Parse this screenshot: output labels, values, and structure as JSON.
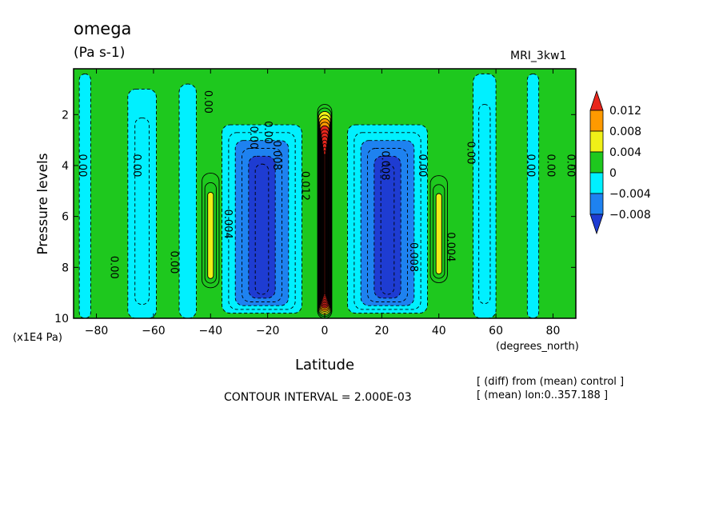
{
  "header": {
    "title": "omega",
    "units": "(Pa s-1)",
    "model": "MRI_3kw1"
  },
  "footer": {
    "contour_interval": "CONTOUR INTERVAL = 2.000E-03",
    "note_diff": "[ (diff) from (mean) control ]",
    "note_mean": "[ (mean) lon:0..357.188 ]"
  },
  "chart_data": {
    "type": "heatmap",
    "title": "omega",
    "subtitle": "(Pa s-1)",
    "xlabel": "Latitude",
    "xunit": "(degrees_north)",
    "ylabel": "Pressure levels",
    "yunit": "(x1E4 Pa)",
    "xlim": [
      -88,
      88
    ],
    "ylim": [
      10,
      0.2
    ],
    "x_ticks": [
      -80,
      -60,
      -40,
      -20,
      0,
      20,
      40,
      60,
      80
    ],
    "x_tick_labels": [
      "−80",
      "−60",
      "−40",
      "−20",
      "0",
      "20",
      "40",
      "60",
      "80"
    ],
    "y_ticks": [
      2,
      4,
      6,
      8,
      10
    ],
    "y_tick_labels": [
      "2",
      "4",
      "6",
      "8",
      "10"
    ],
    "contour_interval": 0.002,
    "colorbar": {
      "labels": [
        "0.012",
        "0.008",
        "0.004",
        "0",
        "−0.004",
        "−0.008"
      ],
      "colors": [
        "#e8261c",
        "#ff9a00",
        "#f0f018",
        "#1ec81e",
        "#00f0ff",
        "#1e82f0",
        "#1e3cd2"
      ]
    },
    "fill_levels": [
      {
        "min": -0.012,
        "max": -0.008,
        "color": "#1e3cd2"
      },
      {
        "min": -0.008,
        "max": -0.004,
        "color": "#1e82f0"
      },
      {
        "min": -0.004,
        "max": 0.0,
        "color": "#00f0ff"
      },
      {
        "min": 0.0,
        "max": 0.004,
        "color": "#1ec81e"
      },
      {
        "min": 0.004,
        "max": 0.008,
        "color": "#f0f018"
      },
      {
        "min": 0.008,
        "max": 0.012,
        "color": "#ff9a00"
      },
      {
        "min": 0.012,
        "max": 0.05,
        "color": "#e8261c"
      }
    ],
    "features": [
      {
        "name": "equatorial-ascent-core",
        "lat_center": 0,
        "lat_halfwidth": 2.5,
        "p_top": 1.6,
        "p_bottom": 10,
        "peak": 0.03
      },
      {
        "name": "subtropical-descent-south",
        "lat_center": -22,
        "lat_halfwidth": 14,
        "p_top": 2.4,
        "p_bottom": 9.8,
        "peak": -0.011
      },
      {
        "name": "subtropical-descent-north",
        "lat_center": 22,
        "lat_halfwidth": 14,
        "p_top": 2.4,
        "p_bottom": 9.8,
        "peak": -0.011
      },
      {
        "name": "midlatitude-ascent-south",
        "lat_center": -40,
        "lat_halfwidth": 3,
        "p_top": 4.3,
        "p_bottom": 8.8,
        "peak": 0.006
      },
      {
        "name": "midlatitude-ascent-north",
        "lat_center": 40,
        "lat_halfwidth": 3,
        "p_top": 4.4,
        "p_bottom": 8.6,
        "peak": 0.006
      },
      {
        "name": "cyan-band-south-70",
        "lat_center": -64,
        "lat_halfwidth": 5,
        "p_top": 1.0,
        "p_bottom": 10,
        "peak": -0.003
      },
      {
        "name": "cyan-band-south-48",
        "lat_center": -48,
        "lat_halfwidth": 3,
        "p_top": 0.8,
        "p_bottom": 10,
        "peak": -0.002
      },
      {
        "name": "cyan-band-north-55",
        "lat_center": 56,
        "lat_halfwidth": 4,
        "p_top": 0.4,
        "p_bottom": 10,
        "peak": -0.003
      },
      {
        "name": "cyan-band-north-73",
        "lat_center": 73,
        "lat_halfwidth": 2,
        "p_top": 0.4,
        "p_bottom": 10,
        "peak": -0.002
      },
      {
        "name": "cyan-band-south-85",
        "lat_center": -84,
        "lat_halfwidth": 2,
        "p_top": 0.4,
        "p_bottom": 10,
        "peak": -0.002
      }
    ],
    "contour_labels": [
      {
        "text": "0.00",
        "lat": -42,
        "p": 1.5
      },
      {
        "text": "0.00",
        "lat": -86,
        "p": 4.0
      },
      {
        "text": "0.00",
        "lat": -67,
        "p": 4.0
      },
      {
        "text": "0.00",
        "lat": -75,
        "p": 8.0
      },
      {
        "text": "0.00",
        "lat": -54,
        "p": 7.8
      },
      {
        "text": "0.004",
        "lat": -35,
        "p": 6.3
      },
      {
        "text": "0.00",
        "lat": -26,
        "p": 2.9
      },
      {
        "text": "0.00",
        "lat": -21,
        "p": 2.7
      },
      {
        "text": "0.008",
        "lat": -18,
        "p": 3.6
      },
      {
        "text": "0.012",
        "lat": -8,
        "p": 4.8
      },
      {
        "text": "0.008",
        "lat": 20,
        "p": 4.0
      },
      {
        "text": "0.00",
        "lat": 33,
        "p": 4.0
      },
      {
        "text": "0.008",
        "lat": 30,
        "p": 7.6
      },
      {
        "text": "0.004",
        "lat": 43,
        "p": 7.2
      },
      {
        "text": "0.00",
        "lat": 50,
        "p": 3.5
      },
      {
        "text": "0.00",
        "lat": 71,
        "p": 4.0
      },
      {
        "text": "0.00",
        "lat": 78,
        "p": 4.0
      },
      {
        "text": "0.00",
        "lat": 85,
        "p": 4.0
      }
    ]
  }
}
